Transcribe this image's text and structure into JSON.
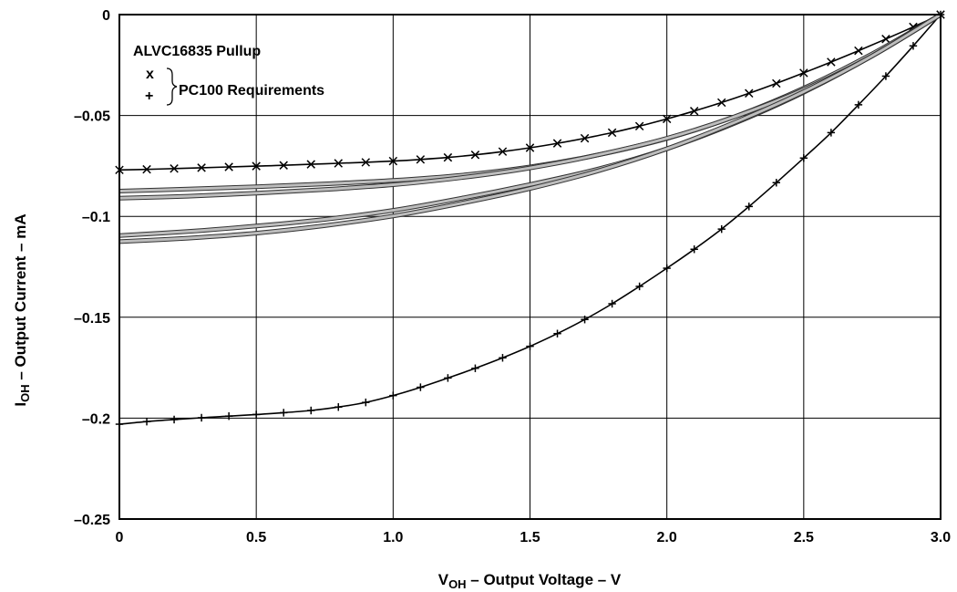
{
  "chart_data": {
    "type": "line",
    "xlabel": {
      "main": "V",
      "sub": "OH",
      "rest": " – Output Voltage – V"
    },
    "ylabel": {
      "main": "I",
      "sub": "OH",
      "rest": " – Output Current – mA"
    },
    "xlim": [
      0,
      3.0
    ],
    "ylim": [
      -0.25,
      0
    ],
    "x_ticks": [
      0,
      0.5,
      1.0,
      1.5,
      2.0,
      2.5,
      3.0
    ],
    "x_tick_labels": [
      "0",
      "0.5",
      "1.0",
      "1.5",
      "2.0",
      "2.5",
      "3.0"
    ],
    "y_ticks": [
      0,
      -0.05,
      -0.1,
      -0.15,
      -0.2,
      -0.25
    ],
    "y_tick_labels": [
      "0",
      "–0.05",
      "–0.1",
      "–0.15",
      "–0.2",
      "–0.25"
    ],
    "grid": true,
    "legend": {
      "title": "ALVC16835 Pullup",
      "markers": [
        "x",
        "+"
      ],
      "group_label": "PC100 Requirements",
      "placement": "top-left"
    },
    "series": [
      {
        "marker": "x",
        "x": [
          0,
          0.1,
          0.2,
          0.3,
          0.4,
          0.5,
          0.6,
          0.7,
          0.8,
          0.9,
          1.0,
          1.1,
          1.2,
          1.3,
          1.4,
          1.5,
          1.6,
          1.7,
          1.8,
          1.9,
          2.0,
          2.1,
          2.2,
          2.3,
          2.4,
          2.5,
          2.6,
          2.7,
          2.8,
          2.9,
          3.0
        ],
        "values": [
          -0.077,
          -0.0767,
          -0.0763,
          -0.0759,
          -0.0755,
          -0.0751,
          -0.0747,
          -0.0742,
          -0.0737,
          -0.0732,
          -0.0726,
          -0.0718,
          -0.0708,
          -0.0695,
          -0.0679,
          -0.066,
          -0.0638,
          -0.0613,
          -0.0585,
          -0.0553,
          -0.0517,
          -0.0478,
          -0.0436,
          -0.039,
          -0.0341,
          -0.0289,
          -0.0235,
          -0.0179,
          -0.0121,
          -0.0061,
          0
        ]
      },
      {
        "marker": "+",
        "x": [
          0,
          0.1,
          0.2,
          0.3,
          0.4,
          0.5,
          0.6,
          0.7,
          0.8,
          0.9,
          1.0,
          1.1,
          1.2,
          1.3,
          1.4,
          1.5,
          1.6,
          1.7,
          1.8,
          1.9,
          2.0,
          2.1,
          2.2,
          2.3,
          2.4,
          2.5,
          2.6,
          2.7,
          2.8,
          2.9,
          3.0
        ],
        "values": [
          -0.203,
          -0.2017,
          -0.2007,
          -0.1998,
          -0.199,
          -0.1982,
          -0.1973,
          -0.1962,
          -0.1945,
          -0.1922,
          -0.1888,
          -0.1847,
          -0.1801,
          -0.1753,
          -0.1701,
          -0.1644,
          -0.1581,
          -0.1511,
          -0.1433,
          -0.1347,
          -0.1257,
          -0.1163,
          -0.1063,
          -0.0951,
          -0.0833,
          -0.0711,
          -0.0585,
          -0.0447,
          -0.0305,
          -0.0155,
          0
        ]
      },
      {
        "marker": "none",
        "x": [
          0,
          0.25,
          0.5,
          0.75,
          1.0,
          1.25,
          1.5,
          1.75,
          2.0,
          2.25,
          2.5,
          2.75,
          3.0
        ],
        "values": [
          -0.0875,
          -0.0865,
          -0.0853,
          -0.0839,
          -0.0822,
          -0.0796,
          -0.0755,
          -0.0695,
          -0.0614,
          -0.0505,
          -0.0365,
          -0.0195,
          0
        ]
      },
      {
        "marker": "none",
        "x": [
          0,
          0.25,
          0.5,
          0.75,
          1.0,
          1.25,
          1.5,
          1.75,
          2.0,
          2.25,
          2.5,
          2.75,
          3.0
        ],
        "values": [
          -0.091,
          -0.09,
          -0.0885,
          -0.0867,
          -0.0843,
          -0.0808,
          -0.076,
          -0.0695,
          -0.0613,
          -0.0505,
          -0.0372,
          -0.0205,
          0
        ]
      },
      {
        "marker": "none",
        "x": [
          0,
          0.25,
          0.5,
          0.75,
          1.0,
          1.25,
          1.5,
          1.75,
          2.0,
          2.25,
          2.5,
          2.75,
          3.0
        ],
        "values": [
          -0.1095,
          -0.1075,
          -0.1048,
          -0.1015,
          -0.097,
          -0.091,
          -0.0842,
          -0.0765,
          -0.0665,
          -0.0537,
          -0.0385,
          -0.0205,
          0
        ]
      },
      {
        "marker": "none",
        "x": [
          0,
          0.25,
          0.5,
          0.75,
          1.0,
          1.25,
          1.5,
          1.75,
          2.0,
          2.25,
          2.5,
          2.75,
          3.0
        ],
        "values": [
          -0.1125,
          -0.1108,
          -0.1083,
          -0.1046,
          -0.0998,
          -0.0935,
          -0.0862,
          -0.0774,
          -0.0665,
          -0.0533,
          -0.0382,
          -0.0205,
          0
        ]
      }
    ]
  }
}
